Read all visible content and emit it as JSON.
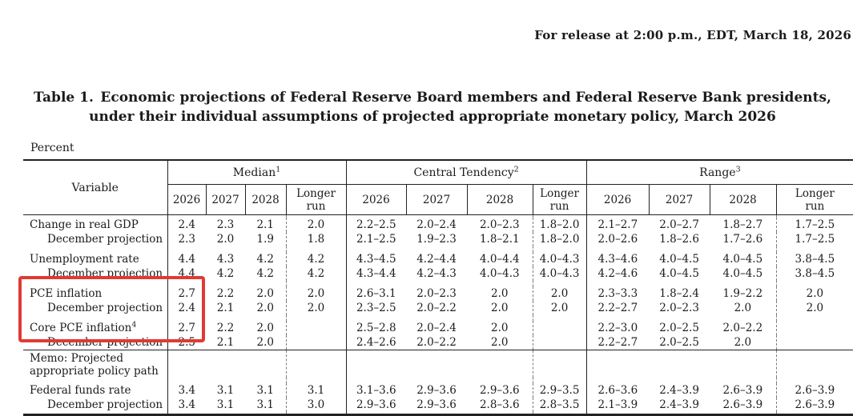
{
  "page": {
    "release_line": "For release at 2:00 p.m., EDT, March 18, 2026",
    "title_line1": "Table 1. Economic projections of Federal Reserve Board members and Federal Reserve Bank presidents,",
    "title_line2": "under their individual assumptions of projected appropriate monetary policy, March 2026",
    "unit_label": "Percent"
  },
  "table": {
    "variable_header": "Variable",
    "groups": [
      {
        "label": "Median",
        "footnote": "1"
      },
      {
        "label": "Central Tendency",
        "footnote": "2"
      },
      {
        "label": "Range",
        "footnote": "3"
      }
    ],
    "year_columns": [
      "2026",
      "2027",
      "2028",
      "Longer\nrun"
    ],
    "rows": [
      {
        "type": "data",
        "label": "Change in real GDP",
        "indent": false,
        "footnote": "",
        "values": [
          "2.4",
          "2.3",
          "2.1",
          "2.0",
          "2.2–2.5",
          "2.0–2.4",
          "2.0–2.3",
          "1.8–2.0",
          "2.1–2.7",
          "2.0–2.7",
          "1.8–2.7",
          "1.7–2.5"
        ]
      },
      {
        "type": "data",
        "label": "December projection",
        "indent": true,
        "footnote": "",
        "values": [
          "2.3",
          "2.0",
          "1.9",
          "1.8",
          "2.1–2.5",
          "1.9–2.3",
          "1.8–2.1",
          "1.8–2.0",
          "2.0–2.6",
          "1.8–2.6",
          "1.7–2.6",
          "1.7–2.5"
        ]
      },
      {
        "type": "gap"
      },
      {
        "type": "data",
        "label": "Unemployment rate",
        "indent": false,
        "footnote": "",
        "values": [
          "4.4",
          "4.3",
          "4.2",
          "4.2",
          "4.3–4.5",
          "4.2–4.4",
          "4.0–4.4",
          "4.0–4.3",
          "4.3–4.6",
          "4.0–4.5",
          "4.0–4.5",
          "3.8–4.5"
        ]
      },
      {
        "type": "data",
        "label": "December projection",
        "indent": true,
        "footnote": "",
        "values": [
          "4.4",
          "4.2",
          "4.2",
          "4.2",
          "4.3–4.4",
          "4.2–4.3",
          "4.0–4.3",
          "4.0–4.3",
          "4.2–4.6",
          "4.0–4.5",
          "4.0–4.5",
          "3.8–4.5"
        ]
      },
      {
        "type": "gap"
      },
      {
        "type": "data",
        "label": "PCE inflation",
        "indent": false,
        "footnote": "",
        "values": [
          "2.7",
          "2.2",
          "2.0",
          "2.0",
          "2.6–3.1",
          "2.0–2.3",
          "2.0",
          "2.0",
          "2.3–3.3",
          "1.8–2.4",
          "1.9–2.2",
          "2.0"
        ]
      },
      {
        "type": "data",
        "label": "December projection",
        "indent": true,
        "footnote": "",
        "values": [
          "2.4",
          "2.1",
          "2.0",
          "2.0",
          "2.3–2.5",
          "2.0–2.2",
          "2.0",
          "2.0",
          "2.2–2.7",
          "2.0–2.3",
          "2.0",
          "2.0"
        ]
      },
      {
        "type": "gap"
      },
      {
        "type": "data",
        "label": "Core PCE inflation",
        "indent": false,
        "footnote": "4",
        "values": [
          "2.7",
          "2.2",
          "2.0",
          "",
          "2.5–2.8",
          "2.0–2.4",
          "2.0",
          "",
          "2.2–3.0",
          "2.0–2.5",
          "2.0–2.2",
          ""
        ]
      },
      {
        "type": "data",
        "label": "December projection",
        "indent": true,
        "footnote": "",
        "values": [
          "2.5",
          "2.1",
          "2.0",
          "",
          "2.4–2.6",
          "2.0–2.2",
          "2.0",
          "",
          "2.2–2.7",
          "2.0–2.5",
          "2.0",
          ""
        ]
      },
      {
        "type": "memo",
        "label_lines": [
          "Memo: Projected",
          "appropriate policy path"
        ],
        "values": [
          "",
          "",
          "",
          "",
          "",
          "",
          "",
          "",
          "",
          "",
          "",
          ""
        ]
      },
      {
        "type": "gap"
      },
      {
        "type": "data",
        "label": "Federal funds rate",
        "indent": false,
        "footnote": "",
        "values": [
          "3.4",
          "3.1",
          "3.1",
          "3.1",
          "3.1–3.6",
          "2.9–3.6",
          "2.9–3.6",
          "2.9–3.5",
          "2.6–3.6",
          "2.4–3.9",
          "2.6–3.9",
          "2.6–3.9"
        ]
      },
      {
        "type": "data",
        "label": "December projection",
        "indent": true,
        "footnote": "",
        "values": [
          "3.4",
          "3.1",
          "3.1",
          "3.0",
          "2.9–3.6",
          "2.9–3.6",
          "2.8–3.6",
          "2.8–3.5",
          "2.1–3.9",
          "2.4–3.9",
          "2.6–3.9",
          "2.6–3.9"
        ]
      }
    ]
  },
  "annotation": {
    "highlight_color": "#e03a35"
  }
}
